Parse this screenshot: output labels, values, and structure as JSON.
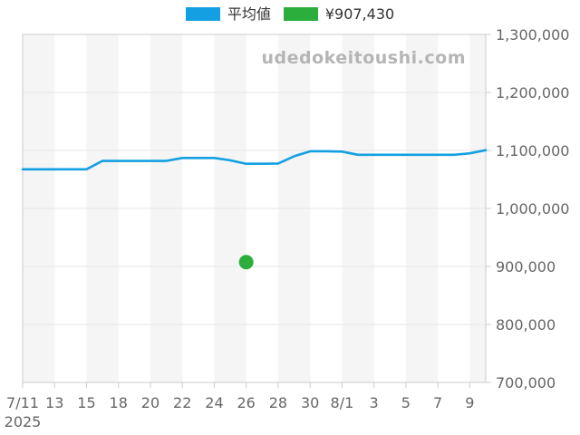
{
  "legend": {
    "items": [
      {
        "label": "平均値",
        "color": "#12a0e2"
      },
      {
        "label": "¥907,430",
        "color": "#2bae3c"
      }
    ]
  },
  "watermark": {
    "text": "udedokeitoushi.com",
    "color": "#b5b5b5"
  },
  "chart_data": {
    "type": "line",
    "title": "",
    "x_axis_year_label": "2025",
    "categories": [
      "7/11",
      "7/12",
      "7/13",
      "7/14",
      "7/15",
      "7/16",
      "7/18",
      "7/19",
      "7/20",
      "7/21",
      "7/22",
      "7/23",
      "7/24",
      "7/25",
      "7/26",
      "7/27",
      "7/28",
      "7/29",
      "7/30",
      "7/31",
      "8/1",
      "8/2",
      "8/3",
      "8/4",
      "8/5",
      "8/6",
      "8/7",
      "8/8",
      "8/9",
      "8/10"
    ],
    "x_tick_labels": [
      "7/11",
      "13",
      "15",
      "18",
      "20",
      "22",
      "24",
      "26",
      "28",
      "30",
      "8/1",
      "3",
      "5",
      "7",
      "9"
    ],
    "series": [
      {
        "name": "平均値",
        "type": "line",
        "color": "#12a0e2",
        "values": [
          1067500,
          1067500,
          1067500,
          1067500,
          1067500,
          1082000,
          1082000,
          1082000,
          1082000,
          1082000,
          1087000,
          1087000,
          1087000,
          1083000,
          1077000,
          1077000,
          1077500,
          1090000,
          1098500,
          1098500,
          1098000,
          1092500,
          1092500,
          1092500,
          1092500,
          1092500,
          1092500,
          1092500,
          1095000,
          1100500
        ]
      },
      {
        "name": "¥907,430",
        "type": "scatter",
        "color": "#2bae3c",
        "points": [
          {
            "category": "7/26",
            "value": 907430,
            "label": "¥907,430"
          }
        ]
      }
    ],
    "ylim": [
      700000,
      1300000
    ],
    "y_tick_step": 100000,
    "grid": true,
    "legend_position": "top",
    "plot_band_note": "alternating vertical stripes, one stripe per 2 categories, starting shaded at left",
    "colors": {
      "stripe": "#f5f5f5",
      "grid": "#e7e7e7",
      "frame": "#cccccc",
      "axis_text": "#666666"
    }
  }
}
